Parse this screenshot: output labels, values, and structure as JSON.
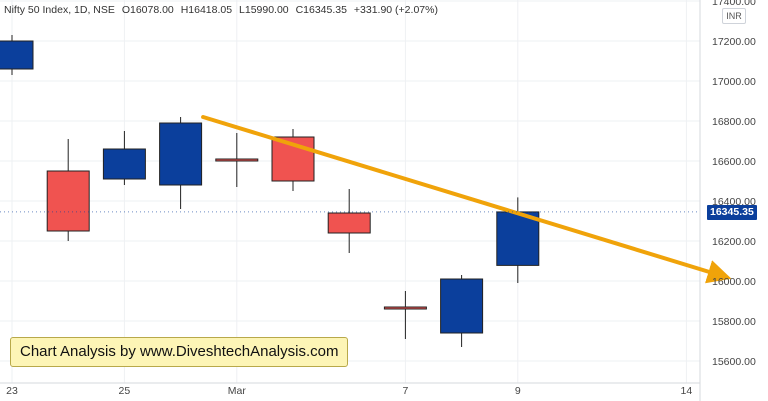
{
  "header": {
    "symbol": "Nifty 50 Index, 1D, NSE",
    "open": "O16078.00",
    "high": "H16418.05",
    "low": "L15990.00",
    "close": "C16345.35",
    "change": "+331.90 (+2.07%)"
  },
  "watermark": "Chart Analysis by www.DiveshtechAnalysis.com",
  "currency": "INR",
  "last_price": "16345.35",
  "colors": {
    "up": "#0b3f9c",
    "down": "#f05350",
    "trendline": "#f0a30a",
    "grid": "#eef0f3",
    "axis_text": "#444444"
  },
  "chart_data": {
    "type": "candlestick",
    "ylim": [
      15450,
      17400
    ],
    "y_ticks": [
      15600,
      15800,
      16000,
      16200,
      16400,
      16600,
      16800,
      17000,
      17200,
      17400
    ],
    "y_tick_labels": [
      "15600.00",
      "15800.00",
      "16000.00",
      "16200.00",
      "16400.00",
      "16600.00",
      "16800.00",
      "17000.00",
      "17200.00",
      "17400.00"
    ],
    "x_ticks": [
      {
        "slot": 0,
        "label": "23"
      },
      {
        "slot": 2,
        "label": "25"
      },
      {
        "slot": 4,
        "label": "Mar"
      },
      {
        "slot": 7,
        "label": "7"
      },
      {
        "slot": 9,
        "label": "9"
      },
      {
        "slot": 12,
        "label": "14"
      }
    ],
    "candles": [
      {
        "slot": 0,
        "open": 17060,
        "high": 17230,
        "low": 17030,
        "close": 17200
      },
      {
        "slot": 1,
        "open": 16550,
        "high": 16710,
        "low": 16200,
        "close": 16250
      },
      {
        "slot": 2,
        "open": 16510,
        "high": 16750,
        "low": 16480,
        "close": 16660
      },
      {
        "slot": 3,
        "open": 16480,
        "high": 16820,
        "low": 16360,
        "close": 16790
      },
      {
        "slot": 4,
        "open": 16610,
        "high": 16740,
        "low": 16470,
        "close": 16600
      },
      {
        "slot": 5,
        "open": 16720,
        "high": 16760,
        "low": 16450,
        "close": 16500
      },
      {
        "slot": 6,
        "open": 16340,
        "high": 16460,
        "low": 16140,
        "close": 16240
      },
      {
        "slot": 7,
        "open": 15870,
        "high": 15950,
        "low": 15710,
        "close": 15860
      },
      {
        "slot": 8,
        "open": 15740,
        "high": 16030,
        "low": 15670,
        "close": 16010
      },
      {
        "slot": 9,
        "open": 16078,
        "high": 16418.05,
        "low": 15990,
        "close": 16345.35
      }
    ],
    "trendline": {
      "from": {
        "slot": 3.4,
        "value": 16820
      },
      "to": {
        "slot": 12.7,
        "value": 16020
      }
    },
    "last_price": 16345.35
  }
}
